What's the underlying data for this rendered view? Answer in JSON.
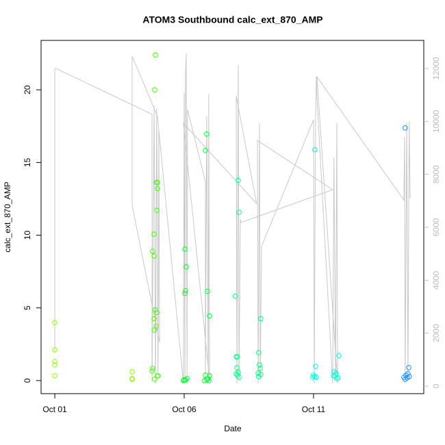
{
  "chart_data": {
    "type": "scatter",
    "title": "ATOM3 Southbound calc_ext_870_AMP",
    "x_label": "Date",
    "y_label": "calc_ext_870_AMP",
    "xlim": [
      -0.53,
      14.26
    ],
    "xticks": [
      {
        "value": 0,
        "label": "Oct 01"
      },
      {
        "value": 5,
        "label": "Oct 06"
      },
      {
        "value": 10,
        "label": "Oct 11"
      }
    ],
    "ylim": [
      -0.9,
      23.4
    ],
    "yticks": [
      0,
      5,
      10,
      15,
      20
    ],
    "y2lim": [
      -284,
      13060
    ],
    "y2ticks": [
      0,
      2000,
      4000,
      6000,
      8000,
      10000,
      12000
    ],
    "y2_color": "#bbbbbb",
    "series": [
      {
        "type": "line",
        "axis": "y2",
        "color": "#c8c8c8",
        "x": [
          0,
          0,
          0.05,
          3.76,
          3.76,
          3.84,
          3.89,
          3.94,
          3.99,
          4.02,
          4.05,
          2.99,
          2.99,
          3.97,
          4.97,
          5.0,
          5.03,
          5.05,
          5.08,
          5.11,
          5.13,
          5.82,
          5.82,
          5.87,
          5.93,
          5.95,
          5.98,
          4.97,
          7.8,
          7.01,
          7.04,
          7.09,
          7.12,
          7.17,
          7.2,
          10.74,
          7.83,
          7.86,
          7.91,
          7.94,
          7.99,
          10.0,
          10.03,
          10.05,
          10.08,
          10.11,
          10.13,
          10.74,
          10.79,
          10.85,
          10.9,
          10.93,
          10.13,
          13.49,
          13.52,
          13.54,
          13.6,
          13.65,
          13.68,
          13.7,
          13.73
        ],
        "values": [
          1270,
          12000,
          12000,
          10270,
          230,
          10580,
          100,
          10500,
          360,
          9670,
          1650,
          6830,
          12460,
          10190,
          100,
          11090,
          230,
          11740,
          12570,
          100,
          10450,
          7730,
          100,
          10190,
          100,
          11040,
          230,
          9930,
          6900,
          10960,
          100,
          12130,
          230,
          6310,
          6180,
          7420,
          9280,
          100,
          9930,
          230,
          5280,
          10060,
          100,
          4890,
          10190,
          11690,
          10960,
          100,
          8640,
          230,
          9930,
          100,
          11690,
          7030,
          9410,
          100,
          9930,
          230,
          7090,
          9980,
          7090
        ]
      },
      {
        "type": "scatter",
        "color": "#8cff00",
        "x": [
          0,
          0,
          0,
          0,
          0,
          2.99,
          2.99,
          2.99
        ],
        "values": [
          3.98,
          2.11,
          1.31,
          1.08,
          0.33,
          0.61,
          0.14,
          0.09
        ]
      },
      {
        "type": "scatter",
        "color": "#44ff00",
        "x": [
          3.89,
          3.86,
          3.92,
          3.97,
          3.97,
          3.94,
          3.84,
          3.78,
          3.84,
          3.89,
          3.94,
          3.84,
          3.92,
          3.84,
          3.78,
          3.76,
          3.97,
          3.86,
          3.99
        ],
        "values": [
          22.39,
          20.0,
          13.63,
          13.63,
          13.21,
          11.71,
          10.07,
          8.9,
          8.57,
          4.87,
          4.68,
          4.26,
          3.75,
          3.47,
          0.84,
          0.66,
          0.33,
          0.09,
          0.33
        ]
      },
      {
        "type": "scatter",
        "color": "#00ff2a",
        "x": [
          5.03,
          5.08,
          5.05,
          5.03,
          5.0,
          5.05,
          5.11,
          4.97,
          5.82,
          5.87,
          5.9,
          5.98,
          5.82,
          5.87,
          5.93,
          5.98,
          5.79,
          5.95
        ],
        "values": [
          9.04,
          7.82,
          6.18,
          6.0,
          0.05,
          0.05,
          0.14,
          0.0,
          15.83,
          16.96,
          6.14,
          4.45,
          0.37,
          0.09,
          0.14,
          0.33,
          0.0,
          0.0
        ]
      },
      {
        "type": "scatter",
        "color": "#00ff80",
        "x": [
          7.09,
          7.12,
          6.98,
          7.01,
          7.06,
          7.04,
          7.09,
          7.01,
          7.12,
          7.06,
          7.88,
          7.96,
          7.91,
          7.94,
          7.86,
          7.96,
          7.88
        ],
        "values": [
          13.77,
          11.57,
          5.81,
          1.64,
          1.64,
          0.89,
          0.56,
          0.47,
          0.23,
          0.37,
          1.92,
          4.26,
          1.08,
          0.84,
          0.51,
          0.42,
          0.28
        ]
      },
      {
        "type": "scatter",
        "color": "#00ffdd",
        "x": [
          10.05,
          10.08,
          10.0,
          10.05,
          10.11,
          9.97,
          10.98,
          10.79,
          10.85,
          10.9,
          10.77,
          10.95,
          10.87
        ],
        "values": [
          15.88,
          0.98,
          0.37,
          0.28,
          0.23,
          0.23,
          1.73,
          0.61,
          0.37,
          0.14,
          0.33,
          0.19,
          0.51
        ]
      },
      {
        "type": "scatter",
        "color": "#1a90ff",
        "x": [
          13.54,
          13.68,
          13.49,
          13.57,
          13.62,
          13.7,
          13.54,
          13.65
        ],
        "values": [
          17.38,
          0.89,
          0.23,
          0.37,
          0.19,
          0.28,
          0.09,
          0.47
        ]
      }
    ]
  }
}
